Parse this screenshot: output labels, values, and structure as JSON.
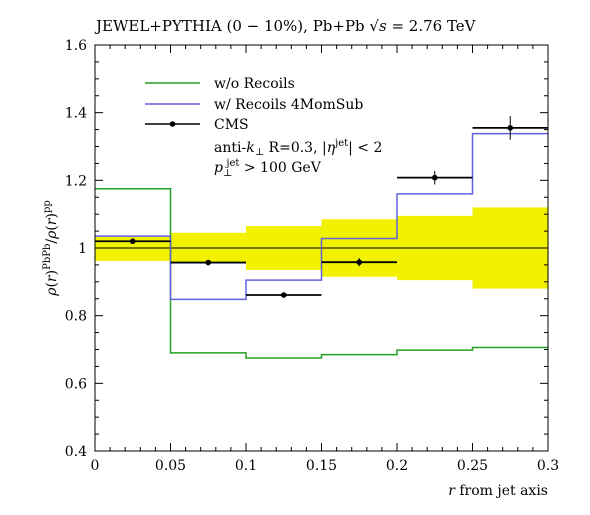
{
  "chart_data": {
    "type": "step-histogram",
    "title": "JEWEL+PYTHIA (0 − 10%), Pb+Pb √s = 2.76 TeV",
    "xlabel": "r from jet axis",
    "ylabel": "ρ(r)^PbPb / ρ(r)^pp",
    "xlim": [
      0,
      0.3
    ],
    "ylim": [
      0.4,
      1.6
    ],
    "x_ticks": [
      "0",
      "0.05",
      "0.1",
      "0.15",
      "0.2",
      "0.25",
      "0.3"
    ],
    "y_ticks": [
      "0.4",
      "0.6",
      "0.8",
      "1",
      "1.2",
      "1.4",
      "1.6"
    ],
    "bin_edges": [
      0,
      0.05,
      0.1,
      0.15,
      0.2,
      0.25,
      0.3
    ],
    "reference_line": 1.0,
    "series": [
      {
        "name": "w/o Recoils",
        "color": "#22a022",
        "values": [
          1.175,
          0.69,
          0.675,
          0.685,
          0.698,
          0.706
        ]
      },
      {
        "name": "w/ Recoils 4MomSub",
        "color": "#6060e0",
        "values": [
          1.035,
          0.848,
          0.905,
          1.028,
          1.16,
          1.338
        ]
      }
    ],
    "uncertainty_band": {
      "color": "#f2f200",
      "low": [
        0.962,
        0.955,
        0.935,
        0.915,
        0.905,
        0.88
      ],
      "high": [
        1.035,
        1.045,
        1.065,
        1.085,
        1.095,
        1.12
      ]
    },
    "data_points": {
      "name": "CMS",
      "x": [
        0.025,
        0.075,
        0.125,
        0.175,
        0.225,
        0.275
      ],
      "y": [
        1.02,
        0.957,
        0.861,
        0.958,
        1.208,
        1.355
      ],
      "yerr": [
        0.007,
        0.007,
        0.007,
        0.012,
        0.02,
        0.035
      ],
      "xerr": 0.025
    },
    "annotation_lines": [
      "anti-k⊥ R=0.3, |η^jet| < 2",
      "p⊥^jet > 100 GeV"
    ],
    "legend_position": "top-left"
  }
}
